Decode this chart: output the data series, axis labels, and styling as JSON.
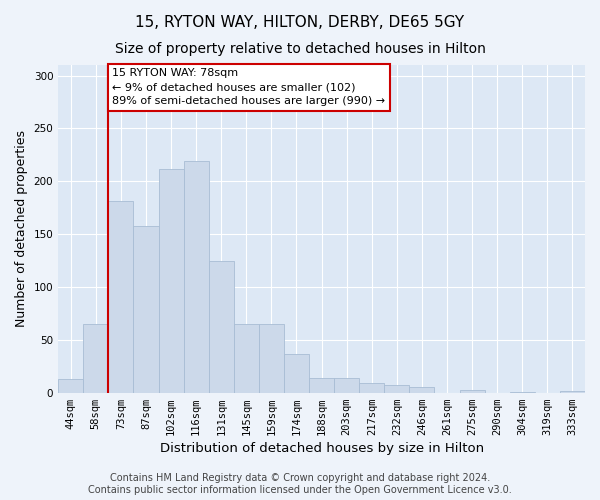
{
  "title": "15, RYTON WAY, HILTON, DERBY, DE65 5GY",
  "subtitle": "Size of property relative to detached houses in Hilton",
  "xlabel": "Distribution of detached houses by size in Hilton",
  "ylabel": "Number of detached properties",
  "footer_line1": "Contains HM Land Registry data © Crown copyright and database right 2024.",
  "footer_line2": "Contains public sector information licensed under the Open Government Licence v3.0.",
  "categories": [
    "44sqm",
    "58sqm",
    "73sqm",
    "87sqm",
    "102sqm",
    "116sqm",
    "131sqm",
    "145sqm",
    "159sqm",
    "174sqm",
    "188sqm",
    "203sqm",
    "217sqm",
    "232sqm",
    "246sqm",
    "261sqm",
    "275sqm",
    "290sqm",
    "304sqm",
    "319sqm",
    "333sqm"
  ],
  "values": [
    13,
    65,
    181,
    158,
    212,
    219,
    125,
    65,
    65,
    37,
    14,
    14,
    9,
    7,
    5,
    0,
    3,
    0,
    1,
    0,
    2
  ],
  "bar_color": "#ccd9ea",
  "bar_edge_color": "#a8bdd4",
  "vline_index": 2,
  "bar_width": 1.0,
  "annotation_text": "15 RYTON WAY: 78sqm\n← 9% of detached houses are smaller (102)\n89% of semi-detached houses are larger (990) →",
  "annotation_box_color": "#ffffff",
  "annotation_box_edge_color": "#cc0000",
  "vline_color": "#cc0000",
  "ylim": [
    0,
    310
  ],
  "yticks": [
    0,
    50,
    100,
    150,
    200,
    250,
    300
  ],
  "fig_background_color": "#eef3fa",
  "ax_background_color": "#dde8f5",
  "grid_color": "#ffffff",
  "title_fontsize": 11,
  "subtitle_fontsize": 10,
  "xlabel_fontsize": 9.5,
  "ylabel_fontsize": 9,
  "tick_fontsize": 7.5,
  "footer_fontsize": 7
}
